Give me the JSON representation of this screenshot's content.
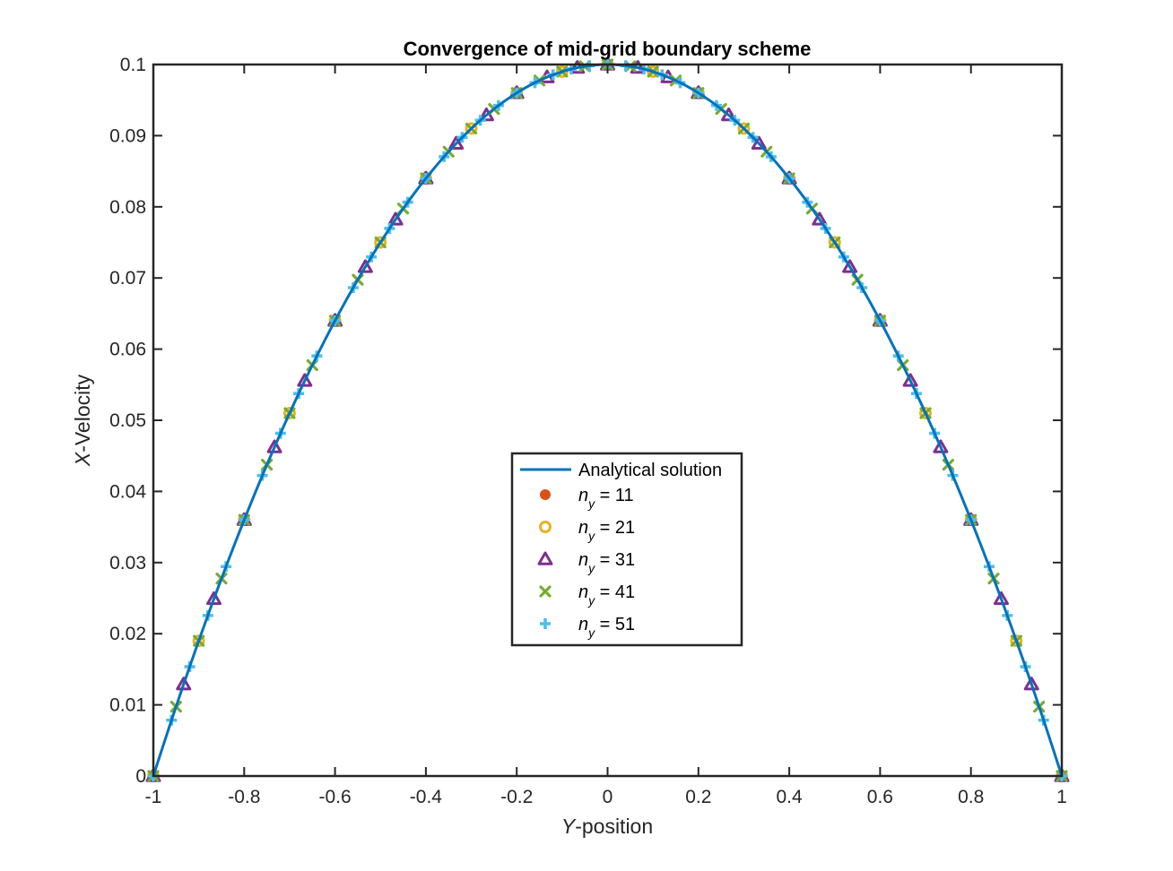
{
  "chart_data": {
    "type": "line",
    "title": "Convergence of mid-grid boundary scheme",
    "xlabel": {
      "italic": "Y",
      "rest": "-position"
    },
    "ylabel": {
      "italic": "X",
      "rest": "-Velocity"
    },
    "xlim": [
      -1,
      1
    ],
    "ylim": [
      0,
      0.1
    ],
    "xticks": [
      -1,
      -0.8,
      -0.6,
      -0.4,
      -0.2,
      0,
      0.2,
      0.4,
      0.6,
      0.8,
      1
    ],
    "xtick_labels": [
      "-1",
      "-0.8",
      "-0.6",
      "-0.4",
      "-0.2",
      "0",
      "0.2",
      "0.4",
      "0.6",
      "0.8",
      "1"
    ],
    "yticks": [
      0,
      0.01,
      0.02,
      0.03,
      0.04,
      0.05,
      0.06,
      0.07,
      0.08,
      0.09,
      0.1
    ],
    "ytick_labels": [
      "0",
      "0.01",
      "0.02",
      "0.03",
      "0.04",
      "0.05",
      "0.06",
      "0.07",
      "0.08",
      "0.09",
      "0.1"
    ],
    "grid": false,
    "legend_position": "center-bottom",
    "analytical": {
      "name": "Analytical solution",
      "formula": "u = 0.1*(1 - y^2)",
      "color": "#0072BD"
    },
    "series": [
      {
        "name_base": "n",
        "name_sub": "y",
        "name_rest": " = 11",
        "ny": 11,
        "marker": "filled-circle",
        "color": "#D95319"
      },
      {
        "name_base": "n",
        "name_sub": "y",
        "name_rest": " = 21",
        "ny": 21,
        "marker": "open-circle",
        "color": "#EDB120"
      },
      {
        "name_base": "n",
        "name_sub": "y",
        "name_rest": " = 31",
        "ny": 31,
        "marker": "open-triangle",
        "color": "#7E2F8E"
      },
      {
        "name_base": "n",
        "name_sub": "y",
        "name_rest": " = 41",
        "ny": 41,
        "marker": "x",
        "color": "#77AC30"
      },
      {
        "name_base": "n",
        "name_sub": "y",
        "name_rest": " = 51",
        "ny": 51,
        "marker": "plus",
        "color": "#4DBEEE"
      }
    ]
  }
}
